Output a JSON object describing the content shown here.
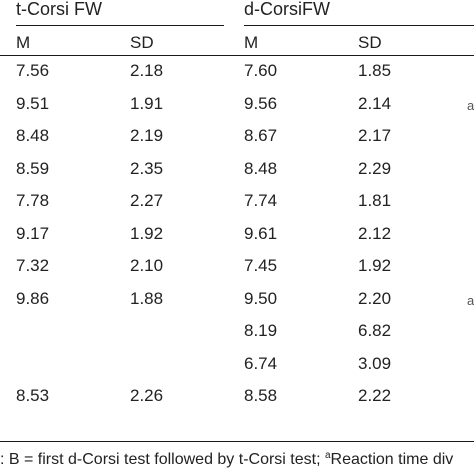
{
  "table": {
    "groups": [
      {
        "label": "t-Corsi FW",
        "cols": [
          "M",
          "SD"
        ]
      },
      {
        "label": "d-CorsiFW",
        "cols": [
          "M",
          "SD"
        ]
      }
    ],
    "rows": [
      [
        "7.56",
        "2.18",
        "7.60",
        "1.85"
      ],
      [
        "9.51",
        "1.91",
        "9.56",
        "2.14"
      ],
      [
        "8.48",
        "2.19",
        "8.67",
        "2.17"
      ],
      [
        "8.59",
        "2.35",
        "8.48",
        "2.29"
      ],
      [
        "7.78",
        "2.27",
        "7.74",
        "1.81"
      ],
      [
        "9.17",
        "1.92",
        "9.61",
        "2.12"
      ],
      [
        "7.32",
        "2.10",
        "7.45",
        "1.92"
      ],
      [
        "9.86",
        "1.88",
        "9.50",
        "2.20"
      ],
      [
        "",
        "",
        "8.19",
        "6.82"
      ],
      [
        "",
        "",
        "6.74",
        "3.09"
      ],
      [
        "8.53",
        "2.26",
        "8.58",
        "2.22"
      ]
    ],
    "edge_marks": [
      "a",
      "a"
    ]
  },
  "footnote": {
    "lead": ": B = first d-Corsi test followed by t-Corsi test; ",
    "sup": "a",
    "tail": "Reaction time div"
  }
}
